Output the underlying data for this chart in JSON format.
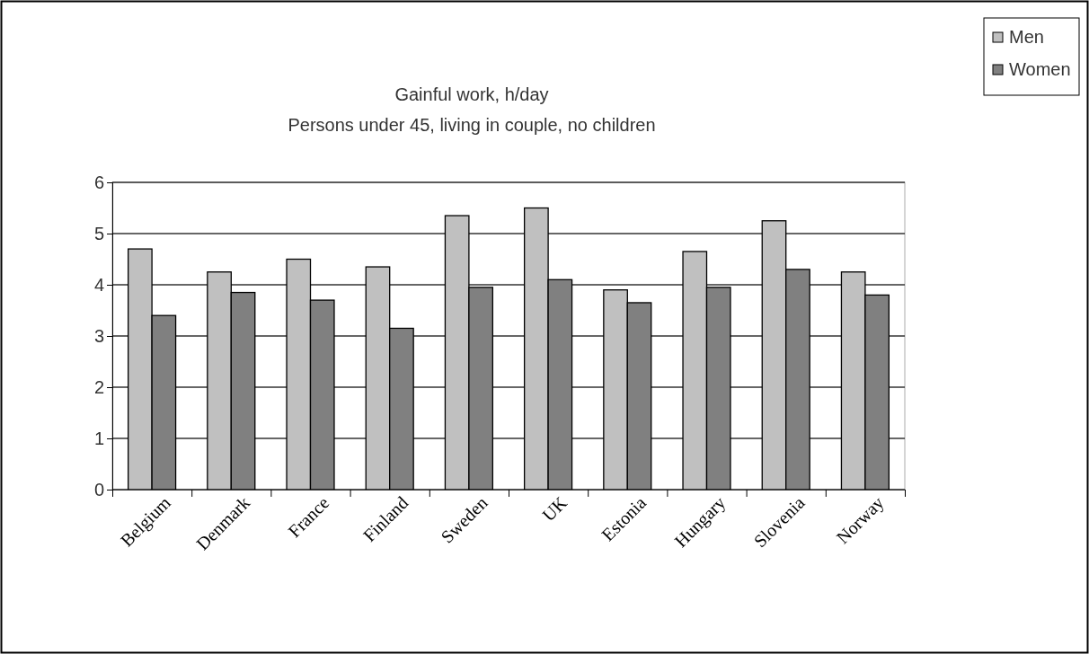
{
  "chart_data": {
    "type": "bar",
    "title": "Gainful work, h/day",
    "subtitle": "Persons under 45, living in couple, no children",
    "categories": [
      "Belgium",
      "Denmark",
      "France",
      "Finland",
      "Sweden",
      "UK",
      "Estonia",
      "Hungary",
      "Slovenia",
      "Norway"
    ],
    "series": [
      {
        "name": "Men",
        "color": "#c0c0c0",
        "values": [
          4.7,
          4.25,
          4.5,
          4.35,
          5.35,
          5.5,
          3.9,
          4.65,
          5.25,
          4.25
        ]
      },
      {
        "name": "Women",
        "color": "#808080",
        "values": [
          3.4,
          3.85,
          3.7,
          3.15,
          3.95,
          4.1,
          3.65,
          3.95,
          4.3,
          3.8
        ]
      }
    ],
    "ylim": [
      0,
      6
    ],
    "yticks": [
      0,
      1,
      2,
      3,
      4,
      5,
      6
    ],
    "grid": "y",
    "legend": "top right"
  }
}
